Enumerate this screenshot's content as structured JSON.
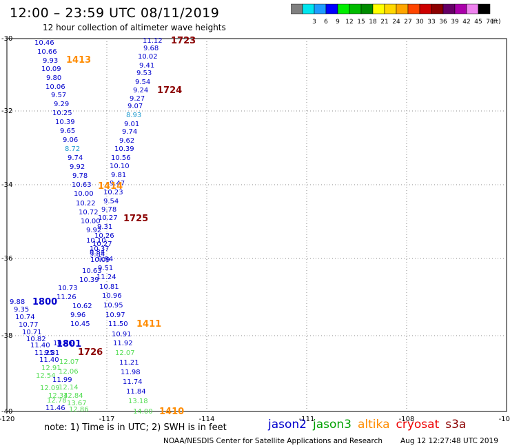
{
  "header": {
    "title": "12:00 – 23:59 UTC 08/11/2019",
    "subtitle": "12 hour collection of altimeter wave heights"
  },
  "color_scale": {
    "unit": "(ft)",
    "bins": [
      {
        "label": "",
        "color": "#7f7f7f"
      },
      {
        "label": "3",
        "color": "#00e5ee"
      },
      {
        "label": "6",
        "color": "#1e9bff"
      },
      {
        "label": "9",
        "color": "#0000ff"
      },
      {
        "label": "12",
        "color": "#00ee00"
      },
      {
        "label": "15",
        "color": "#00bb00"
      },
      {
        "label": "18",
        "color": "#008b00"
      },
      {
        "label": "21",
        "color": "#ffff00"
      },
      {
        "label": "24",
        "color": "#ffd700"
      },
      {
        "label": "27",
        "color": "#ffa500"
      },
      {
        "label": "30",
        "color": "#ff4500"
      },
      {
        "label": "33",
        "color": "#cd0000"
      },
      {
        "label": "36",
        "color": "#8b0000"
      },
      {
        "label": "39",
        "color": "#660066"
      },
      {
        "label": "42",
        "color": "#aa00aa"
      },
      {
        "label": "45",
        "color": "#ee82ee"
      },
      {
        "label": "70",
        "color": "#000000"
      }
    ]
  },
  "axes": {
    "longitude_ticks": [
      "-120",
      "-117",
      "-114",
      "-111",
      "-108",
      "-105"
    ],
    "latitude_ticks": [
      "-30",
      "-32",
      "-34",
      "-36",
      "-38",
      "-40"
    ]
  },
  "observations": [
    {
      "v": "10.46",
      "c": "#0000cd"
    },
    {
      "v": "10.66",
      "c": "#0000cd"
    },
    {
      "v": "9.93",
      "c": "#0000cd"
    },
    {
      "v": "10.09",
      "c": "#0000cd"
    },
    {
      "v": "9.80",
      "c": "#0000cd"
    },
    {
      "v": "10.06",
      "c": "#0000cd"
    },
    {
      "v": "9.57",
      "c": "#0000cd"
    },
    {
      "v": "9.29",
      "c": "#0000cd"
    },
    {
      "v": "10.25",
      "c": "#0000cd"
    },
    {
      "v": "10.39",
      "c": "#0000cd"
    },
    {
      "v": "9.65",
      "c": "#0000cd"
    },
    {
      "v": "9.06",
      "c": "#0000cd"
    },
    {
      "v": "8.72",
      "c": "#1e9bd0"
    },
    {
      "v": "9.74",
      "c": "#0000cd"
    },
    {
      "v": "9.92",
      "c": "#0000cd"
    },
    {
      "v": "9.78",
      "c": "#0000cd"
    },
    {
      "v": "10.63",
      "c": "#0000cd"
    },
    {
      "v": "10.00",
      "c": "#0000cd"
    },
    {
      "v": "10.22",
      "c": "#0000cd"
    },
    {
      "v": "10.72",
      "c": "#0000cd"
    },
    {
      "v": "10.00",
      "c": "#0000cd"
    },
    {
      "v": "9.92",
      "c": "#0000cd"
    },
    {
      "v": "10.10",
      "c": "#0000cd"
    },
    {
      "v": "10.37",
      "c": "#0000cd"
    },
    {
      "v": "9.84",
      "c": "#0000cd"
    },
    {
      "v": "10.09",
      "c": "#0000cd"
    },
    {
      "v": "10.63",
      "c": "#0000cd"
    },
    {
      "v": "10.39",
      "c": "#0000cd"
    },
    {
      "v": "10.73",
      "c": "#0000cd"
    },
    {
      "v": "11.26",
      "c": "#0000cd"
    },
    {
      "v": "10.62",
      "c": "#0000cd"
    },
    {
      "v": "9.96",
      "c": "#0000cd"
    },
    {
      "v": "10.45",
      "c": "#0000cd"
    },
    {
      "v": "11.12",
      "c": "#0000cd"
    },
    {
      "v": "9.68",
      "c": "#0000cd"
    },
    {
      "v": "10.02",
      "c": "#0000cd"
    },
    {
      "v": "9.41",
      "c": "#0000cd"
    },
    {
      "v": "9.53",
      "c": "#0000cd"
    },
    {
      "v": "9.54",
      "c": "#0000cd"
    },
    {
      "v": "9.24",
      "c": "#0000cd"
    },
    {
      "v": "9.27",
      "c": "#0000cd"
    },
    {
      "v": "9.07",
      "c": "#0000cd"
    },
    {
      "v": "8.93",
      "c": "#1e9bd0"
    },
    {
      "v": "9.01",
      "c": "#0000cd"
    },
    {
      "v": "9.74",
      "c": "#0000cd"
    },
    {
      "v": "9.62",
      "c": "#0000cd"
    },
    {
      "v": "10.39",
      "c": "#0000cd"
    },
    {
      "v": "10.56",
      "c": "#0000cd"
    },
    {
      "v": "10.10",
      "c": "#0000cd"
    },
    {
      "v": "9.81",
      "c": "#0000cd"
    },
    {
      "v": "9.47",
      "c": "#0000cd"
    },
    {
      "v": "10.23",
      "c": "#0000cd"
    },
    {
      "v": "9.54",
      "c": "#0000cd"
    },
    {
      "v": "9.78",
      "c": "#0000cd"
    },
    {
      "v": "10.27",
      "c": "#0000cd"
    },
    {
      "v": "9.31",
      "c": "#0000cd"
    },
    {
      "v": "10.26",
      "c": "#0000cd"
    },
    {
      "v": "10.27",
      "c": "#0000cd"
    },
    {
      "v": "9.54",
      "c": "#0000cd"
    },
    {
      "v": "9.94",
      "c": "#0000cd"
    },
    {
      "v": "9.51",
      "c": "#0000cd"
    },
    {
      "v": "11.24",
      "c": "#0000cd"
    },
    {
      "v": "10.81",
      "c": "#0000cd"
    },
    {
      "v": "10.96",
      "c": "#0000cd"
    },
    {
      "v": "10.95",
      "c": "#0000cd"
    },
    {
      "v": "10.97",
      "c": "#0000cd"
    },
    {
      "v": "11.50",
      "c": "#0000cd"
    },
    {
      "v": "10.91",
      "c": "#0000cd"
    },
    {
      "v": "11.92",
      "c": "#0000cd"
    },
    {
      "v": "12.07",
      "c": "#55dd55"
    },
    {
      "v": "11.21",
      "c": "#0000cd"
    },
    {
      "v": "11.98",
      "c": "#0000cd"
    },
    {
      "v": "11.74",
      "c": "#0000cd"
    },
    {
      "v": "11.84",
      "c": "#0000cd"
    },
    {
      "v": "13.18",
      "c": "#55dd55"
    },
    {
      "v": "14.00",
      "c": "#55dd55"
    },
    {
      "v": "9.88",
      "c": "#0000cd"
    },
    {
      "v": "9.35",
      "c": "#0000cd"
    },
    {
      "v": "10.74",
      "c": "#0000cd"
    },
    {
      "v": "10.77",
      "c": "#0000cd"
    },
    {
      "v": "10.71",
      "c": "#0000cd"
    },
    {
      "v": "10.82",
      "c": "#0000cd"
    },
    {
      "v": "11.40",
      "c": "#0000cd"
    },
    {
      "v": "11.25",
      "c": "#0000cd"
    },
    {
      "v": "11.40",
      "c": "#0000cd"
    },
    {
      "v": "9.81",
      "c": "#0000cd"
    },
    {
      "v": "10.46",
      "c": "#0000cd"
    },
    {
      "v": "12.07",
      "c": "#55dd55"
    },
    {
      "v": "12.91",
      "c": "#55dd55"
    },
    {
      "v": "12.06",
      "c": "#55dd55"
    },
    {
      "v": "12.54",
      "c": "#55dd55"
    },
    {
      "v": "11.99",
      "c": "#0000cd"
    },
    {
      "v": "12.09",
      "c": "#55dd55"
    },
    {
      "v": "12.14",
      "c": "#55dd55"
    },
    {
      "v": "12.34",
      "c": "#55dd55"
    },
    {
      "v": "12.84",
      "c": "#55dd55"
    },
    {
      "v": "12.78",
      "c": "#55dd55"
    },
    {
      "v": "13.67",
      "c": "#55dd55"
    },
    {
      "v": "11.46",
      "c": "#0000cd"
    },
    {
      "v": "12.86",
      "c": "#55dd55"
    }
  ],
  "pass_labels": [
    {
      "text": "1723",
      "color": "#8b0000"
    },
    {
      "text": "1413",
      "color": "#ff8c00"
    },
    {
      "text": "1724",
      "color": "#8b0000"
    },
    {
      "text": "1414",
      "color": "#ff8c00"
    },
    {
      "text": "1725",
      "color": "#8b0000"
    },
    {
      "text": "1800",
      "color": "#0000cd"
    },
    {
      "text": "1411",
      "color": "#ff8c00"
    },
    {
      "text": "1801",
      "color": "#0000cd"
    },
    {
      "text": "1726",
      "color": "#8b0000"
    },
    {
      "text": "1410",
      "color": "#ff8c00"
    }
  ],
  "footer": {
    "note": "note:  1) Time is in UTC;  2) SWH is in feet",
    "credit": "NOAA/NESDIS Center for Satellite Applications and Research",
    "timestamp": "Aug 12 12:27:48 UTC 2019"
  },
  "legend": [
    {
      "name": "jason2",
      "color": "#0000cd"
    },
    {
      "name": "jason3",
      "color": "#00a000"
    },
    {
      "name": "altika",
      "color": "#ff8c00"
    },
    {
      "name": "cryosat",
      "color": "#ee0000"
    },
    {
      "name": "s3a",
      "color": "#8b0000"
    }
  ]
}
